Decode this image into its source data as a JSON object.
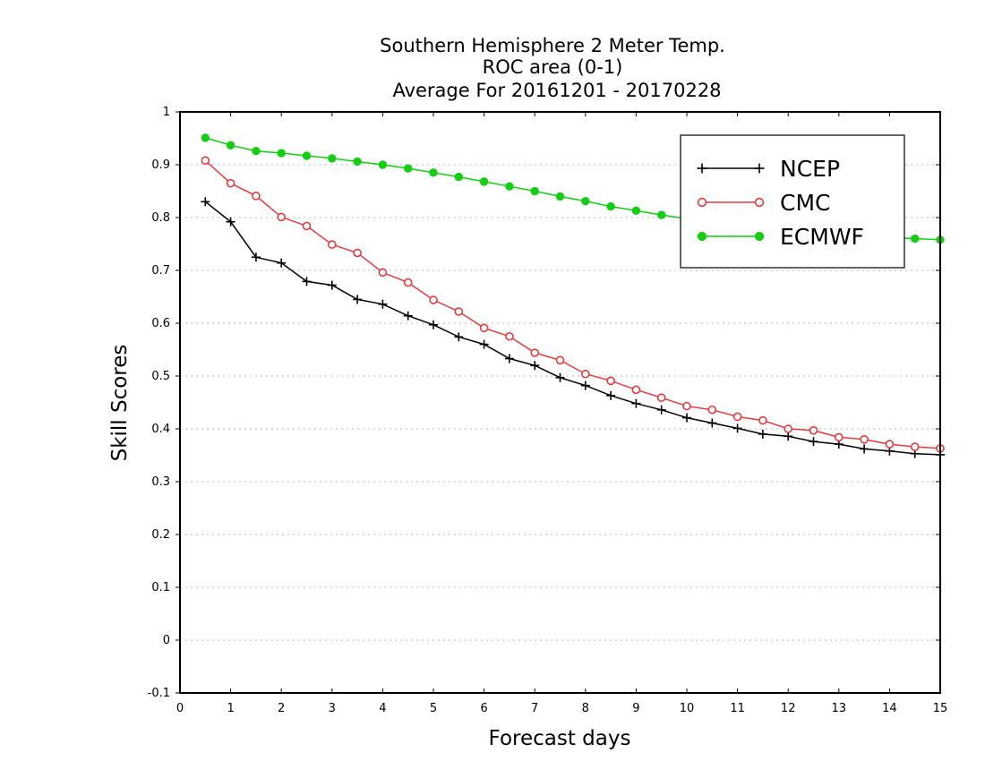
{
  "chart_data": {
    "type": "line",
    "title": [
      "Southern Hemisphere 2 Meter Temp.",
      "ROC area (0-1)",
      "Average For 20161201 - 20170228"
    ],
    "xlabel": "Forecast days",
    "ylabel": "Skill Scores",
    "xlim": [
      0,
      15
    ],
    "ylim": [
      -0.1,
      1
    ],
    "xticks": [
      0,
      1,
      2,
      3,
      4,
      5,
      6,
      7,
      8,
      9,
      10,
      11,
      12,
      13,
      14,
      15
    ],
    "yticks": [
      -0.1,
      0,
      0.1,
      0.2,
      0.3,
      0.4,
      0.5,
      0.6,
      0.7,
      0.8,
      0.9,
      1
    ],
    "ytick_labels": [
      "-0.1",
      "0",
      "0.1",
      "0.2",
      "0.3",
      "0.4",
      "0.5",
      "0.6",
      "0.7",
      "0.8",
      "0.9",
      "1"
    ],
    "grid": true,
    "legend_position": "top-right",
    "x": [
      0.5,
      1,
      1.5,
      2,
      2.5,
      3,
      3.5,
      4,
      4.5,
      5,
      5.5,
      6,
      6.5,
      7,
      7.5,
      8,
      8.5,
      9,
      9.5,
      10,
      10.5,
      11,
      11.5,
      12,
      12.5,
      13,
      13.5,
      14,
      14.5,
      15
    ],
    "series": [
      {
        "name": "NCEP",
        "color": "#000000",
        "marker": "plus",
        "values": [
          0.83,
          0.792,
          0.725,
          0.714,
          0.679,
          0.672,
          0.645,
          0.636,
          0.614,
          0.597,
          0.574,
          0.56,
          0.533,
          0.52,
          0.497,
          0.482,
          0.463,
          0.448,
          0.436,
          0.421,
          0.411,
          0.401,
          0.39,
          0.386,
          0.376,
          0.371,
          0.362,
          0.358,
          0.353,
          0.351
        ]
      },
      {
        "name": "CMC",
        "color": "#e8393d",
        "marker": "open-circle",
        "values": [
          0.908,
          0.865,
          0.841,
          0.801,
          0.784,
          0.749,
          0.733,
          0.696,
          0.677,
          0.644,
          0.622,
          0.591,
          0.575,
          0.544,
          0.53,
          0.504,
          0.491,
          0.474,
          0.459,
          0.443,
          0.436,
          0.423,
          0.416,
          0.4,
          0.397,
          0.384,
          0.38,
          0.371,
          0.366,
          0.363
        ]
      },
      {
        "name": "ECMWF",
        "color": "#14cd14",
        "marker": "filled-circle",
        "values": [
          0.951,
          0.937,
          0.926,
          0.922,
          0.917,
          0.912,
          0.906,
          0.9,
          0.893,
          0.885,
          0.877,
          0.868,
          0.859,
          0.85,
          0.84,
          0.831,
          0.821,
          0.813,
          0.805,
          0.798,
          0.792,
          0.786,
          0.781,
          0.777,
          0.773,
          0.769,
          0.765,
          0.762,
          0.76,
          0.758
        ]
      }
    ]
  }
}
